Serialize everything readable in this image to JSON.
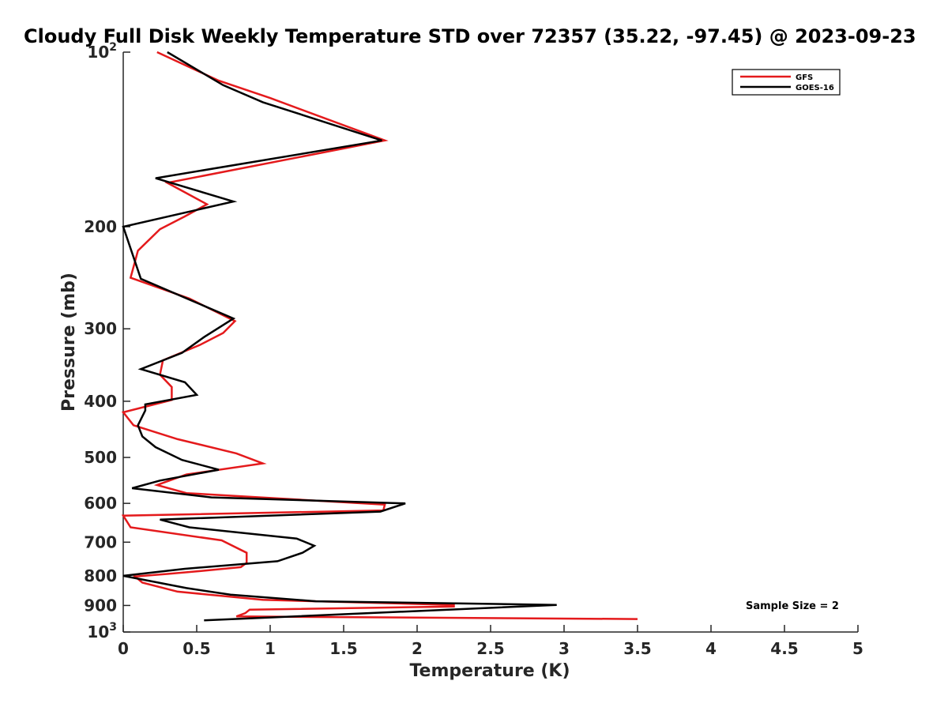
{
  "chart_data": {
    "type": "line",
    "title": "Cloudy Full Disk Weekly Temperature STD over 72357 (35.22, -97.45) @ 2023-09-23",
    "xlabel": "Temperature (K)",
    "ylabel": "Pressure (mb)",
    "xlim": [
      0,
      5
    ],
    "ylim": [
      100,
      1000
    ],
    "y_scale": "log",
    "y_reversed": true,
    "x_ticks": [
      "0",
      "0.5",
      "1",
      "1.5",
      "2",
      "2.5",
      "3",
      "3.5",
      "4",
      "4.5",
      "5"
    ],
    "y_ticks": [
      {
        "value": 100,
        "base": "10",
        "exp": "2"
      },
      {
        "value": 200,
        "label": "200"
      },
      {
        "value": 300,
        "label": "300"
      },
      {
        "value": 400,
        "label": "400"
      },
      {
        "value": 500,
        "label": "500"
      },
      {
        "value": 600,
        "label": "600"
      },
      {
        "value": 700,
        "label": "700"
      },
      {
        "value": 800,
        "label": "800"
      },
      {
        "value": 900,
        "label": "900"
      },
      {
        "value": 1000,
        "base": "10",
        "exp": "3"
      }
    ],
    "grid": false,
    "legend_position": "top-right",
    "annotation": "Sample Size = 2",
    "series": [
      {
        "name": "GFS",
        "color": "#e41a1c",
        "points": [
          [
            0.23,
            100
          ],
          [
            0.65,
            112
          ],
          [
            1.0,
            120
          ],
          [
            1.78,
            142
          ],
          [
            0.3,
            168
          ],
          [
            0.57,
            183
          ],
          [
            0.42,
            192
          ],
          [
            0.25,
            202
          ],
          [
            0.1,
            220
          ],
          [
            0.05,
            245
          ],
          [
            0.45,
            266
          ],
          [
            0.76,
            291
          ],
          [
            0.68,
            305
          ],
          [
            0.52,
            320
          ],
          [
            0.27,
            340
          ],
          [
            0.25,
            360
          ],
          [
            0.33,
            378
          ],
          [
            0.33,
            398
          ],
          [
            0.0,
            418
          ],
          [
            0.07,
            440
          ],
          [
            0.37,
            465
          ],
          [
            0.77,
            492
          ],
          [
            0.95,
            512
          ],
          [
            0.43,
            535
          ],
          [
            0.23,
            558
          ],
          [
            0.43,
            576
          ],
          [
            1.78,
            603
          ],
          [
            1.77,
            617
          ],
          [
            0.0,
            630
          ],
          [
            0.05,
            660
          ],
          [
            0.67,
            695
          ],
          [
            0.84,
            730
          ],
          [
            0.84,
            760
          ],
          [
            0.8,
            773
          ],
          [
            0.53,
            785
          ],
          [
            0.3,
            794
          ],
          [
            0.08,
            802
          ],
          [
            0.13,
            822
          ],
          [
            0.37,
            852
          ],
          [
            0.95,
            880
          ],
          [
            2.25,
            898
          ],
          [
            2.25,
            904
          ],
          [
            0.86,
            915
          ],
          [
            0.83,
            928
          ],
          [
            0.77,
            940
          ],
          [
            3.5,
            950
          ]
        ]
      },
      {
        "name": "GOES-16",
        "color": "#000000",
        "points": [
          [
            0.3,
            100
          ],
          [
            0.68,
            114
          ],
          [
            0.95,
            122
          ],
          [
            1.76,
            142
          ],
          [
            0.22,
            165
          ],
          [
            0.75,
            181
          ],
          [
            0.0,
            200
          ],
          [
            0.12,
            246
          ],
          [
            0.75,
            288
          ],
          [
            0.55,
            310
          ],
          [
            0.4,
            330
          ],
          [
            0.12,
            352
          ],
          [
            0.42,
            371
          ],
          [
            0.5,
            390
          ],
          [
            0.15,
            405
          ],
          [
            0.15,
            415
          ],
          [
            0.1,
            440
          ],
          [
            0.13,
            460
          ],
          [
            0.22,
            480
          ],
          [
            0.4,
            505
          ],
          [
            0.65,
            525
          ],
          [
            0.25,
            548
          ],
          [
            0.06,
            565
          ],
          [
            0.6,
            586
          ],
          [
            1.92,
            600
          ],
          [
            1.75,
            620
          ],
          [
            0.25,
            640
          ],
          [
            0.45,
            660
          ],
          [
            1.18,
            690
          ],
          [
            1.3,
            710
          ],
          [
            1.22,
            730
          ],
          [
            1.05,
            755
          ],
          [
            0.42,
            778
          ],
          [
            0.0,
            800
          ],
          [
            0.43,
            840
          ],
          [
            0.73,
            862
          ],
          [
            1.31,
            885
          ],
          [
            2.95,
            898
          ],
          [
            0.55,
            955
          ]
        ]
      }
    ]
  }
}
